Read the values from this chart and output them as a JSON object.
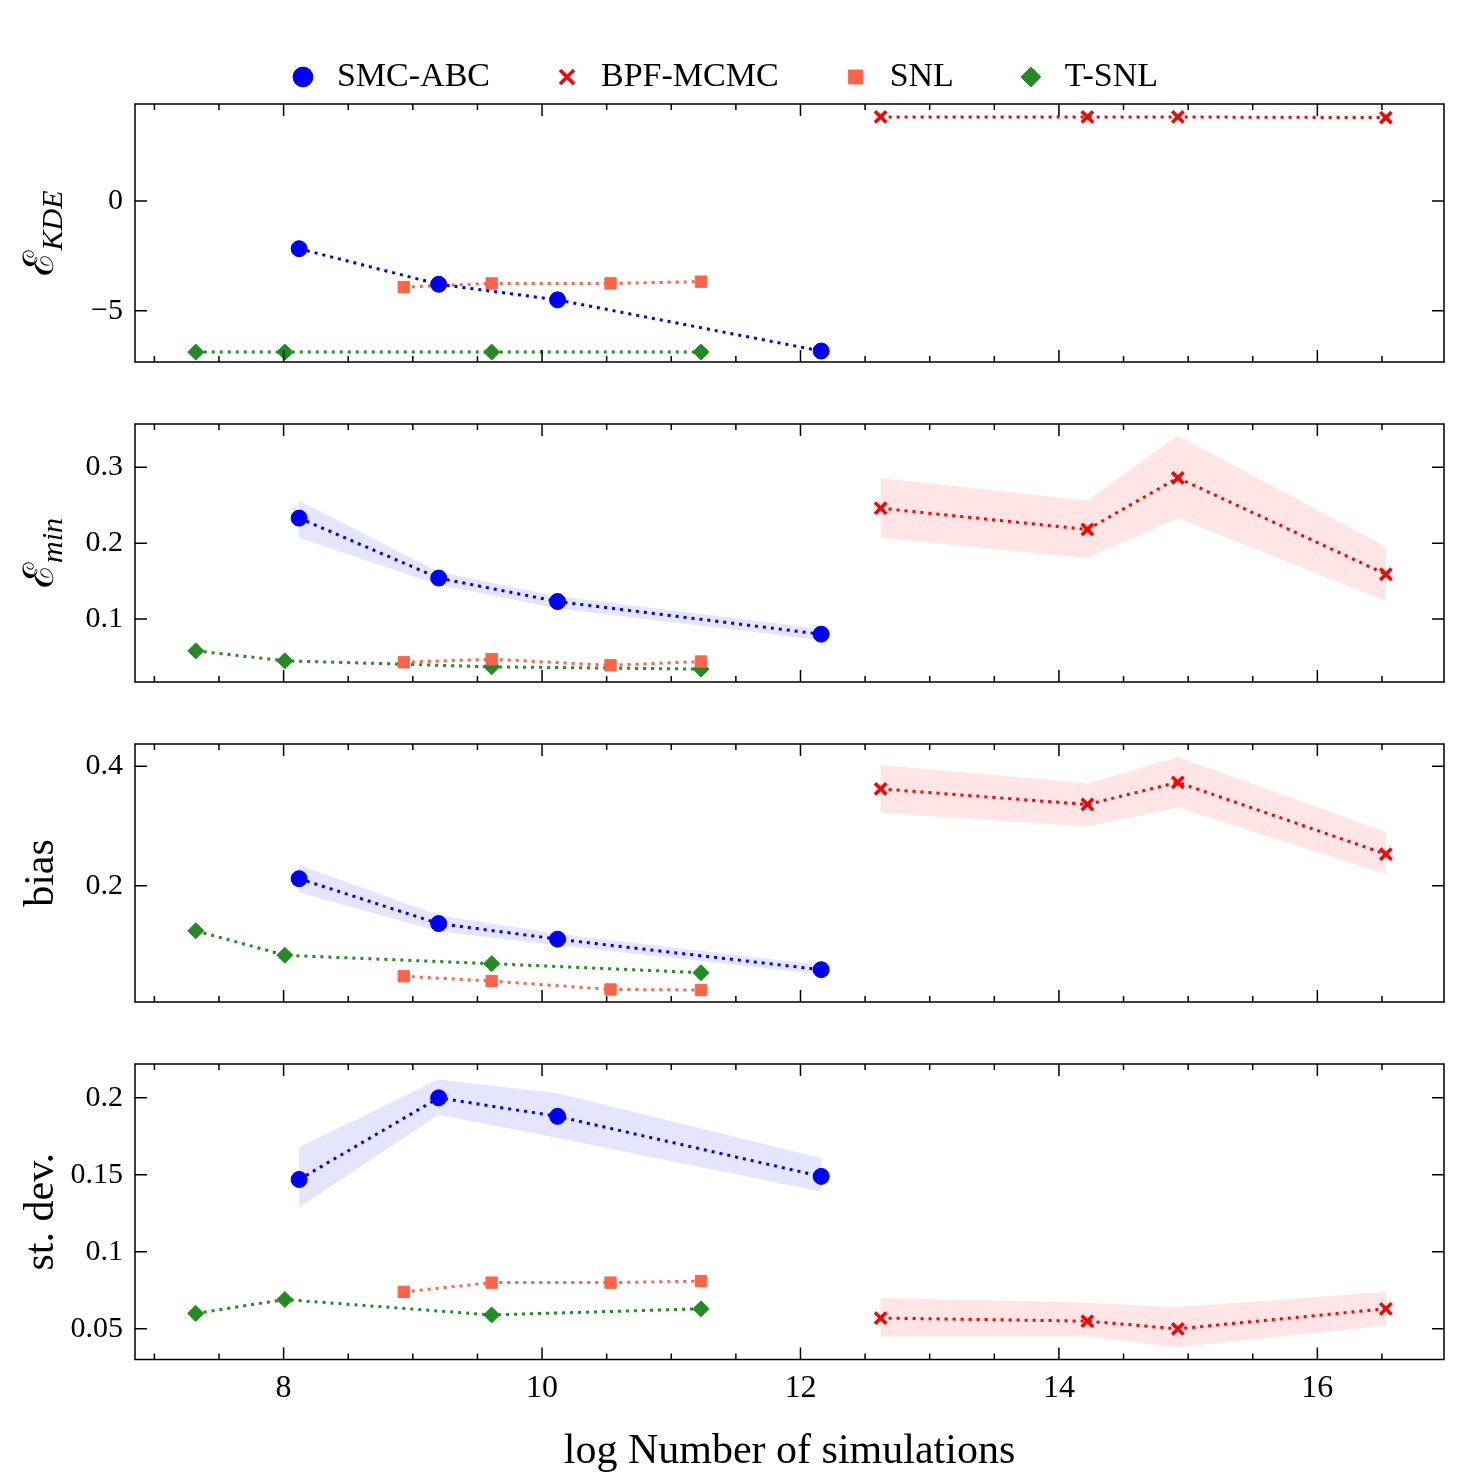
{
  "chart_data": [
    {
      "type": "line",
      "ylabel": "ℰ$_{KDE}$",
      "legend": "top",
      "tick_labels": "y",
      "marker": "circle",
      "line_style": "dotted",
      "xlim": [
        6.85,
        16.98
      ],
      "ylim": [
        -7.33,
        4.42
      ],
      "yticks": [
        -5,
        0
      ],
      "xticks": [
        {
          "value": 7,
          "label": null
        },
        {
          "value": 7.5,
          "label": null
        },
        8,
        {
          "value": 8.5,
          "label": null
        },
        {
          "value": 9,
          "label": null
        },
        {
          "value": 9.5,
          "label": null
        },
        10,
        {
          "value": 10.5,
          "label": null
        },
        {
          "value": 11,
          "label": null
        },
        {
          "value": 11.5,
          "label": null
        },
        12,
        {
          "value": 12.5,
          "label": null
        },
        {
          "value": 13,
          "label": null
        },
        {
          "value": 13.5,
          "label": null
        },
        14,
        {
          "value": 14.5,
          "label": null
        },
        {
          "value": 15,
          "label": null
        },
        {
          "value": 15.5,
          "label": null
        },
        16,
        {
          "value": 16.5,
          "label": null
        }
      ],
      "series": [
        {
          "name": "SMC-ABC",
          "color": "#0000ff",
          "x": [
            8.12,
            9.2,
            10.12,
            12.16
          ],
          "values": [
            -2.17,
            -3.79,
            -4.5,
            -6.83
          ]
        },
        {
          "name": "BPF-MCMC",
          "color": "#ff0000",
          "marker": "cross",
          "x": [
            12.62,
            14.22,
            14.92,
            16.53
          ],
          "values": [
            3.83,
            3.83,
            3.83,
            3.8
          ]
        },
        {
          "name": "SNL",
          "color": "#ff6347",
          "marker": "square",
          "x": [
            8.93,
            9.61,
            10.53,
            11.23
          ],
          "values": [
            -3.92,
            -3.75,
            -3.75,
            -3.67
          ]
        },
        {
          "name": "T-SNL",
          "color": "#228b22",
          "marker": "diamond",
          "x": [
            7.32,
            8.01,
            9.61,
            11.23
          ],
          "values": [
            -6.88,
            -6.88,
            -6.88,
            -6.88
          ]
        }
      ]
    },
    {
      "type": "line",
      "ylabel": "ℰ$_{min}$",
      "tick_labels": "y",
      "marker": "circle",
      "line_style": "dotted",
      "xlim": [
        6.85,
        16.98
      ],
      "ylim": [
        0.017,
        0.357
      ],
      "yticks": [
        0.1,
        0.2,
        0.3
      ],
      "xticks": [
        {
          "value": 7,
          "label": null
        },
        {
          "value": 7.5,
          "label": null
        },
        8,
        {
          "value": 8.5,
          "label": null
        },
        {
          "value": 9,
          "label": null
        },
        {
          "value": 9.5,
          "label": null
        },
        10,
        {
          "value": 10.5,
          "label": null
        },
        {
          "value": 11,
          "label": null
        },
        {
          "value": 11.5,
          "label": null
        },
        12,
        {
          "value": 12.5,
          "label": null
        },
        {
          "value": 13,
          "label": null
        },
        {
          "value": 13.5,
          "label": null
        },
        14,
        {
          "value": 14.5,
          "label": null
        },
        {
          "value": 15,
          "label": null
        },
        {
          "value": 15.5,
          "label": null
        },
        16,
        {
          "value": 16.5,
          "label": null
        }
      ],
      "series": [
        {
          "color": "#0000ff",
          "x": [
            8.12,
            9.2,
            10.12,
            12.16
          ],
          "values": [
            0.233,
            0.154,
            0.123,
            0.08
          ],
          "lower": [
            0.207,
            0.145,
            0.114,
            0.072
          ],
          "upper": [
            0.256,
            0.162,
            0.13,
            0.087
          ]
        },
        {
          "color": "#ff0000",
          "marker": "cross",
          "x": [
            12.62,
            14.22,
            14.92,
            16.53
          ],
          "values": [
            0.246,
            0.218,
            0.286,
            0.159
          ],
          "lower": [
            0.207,
            0.18,
            0.233,
            0.124
          ],
          "upper": [
            0.286,
            0.256,
            0.342,
            0.195
          ]
        },
        {
          "color": "#ff6347",
          "marker": "square",
          "x": [
            8.93,
            9.61,
            10.53,
            11.23
          ],
          "values": [
            0.043,
            0.047,
            0.039,
            0.044
          ]
        },
        {
          "color": "#228b22",
          "marker": "diamond",
          "x": [
            7.32,
            8.01,
            9.61,
            11.23
          ],
          "values": [
            0.058,
            0.045,
            0.037,
            0.034
          ]
        }
      ]
    },
    {
      "type": "line",
      "ylabel": "bias",
      "tick_labels": "y",
      "marker": "circle",
      "line_style": "dotted",
      "xlim": [
        6.85,
        16.98
      ],
      "ylim": [
        0.006,
        0.437
      ],
      "yticks": [
        0.2,
        0.4
      ],
      "xticks": [
        {
          "value": 7,
          "label": null
        },
        {
          "value": 7.5,
          "label": null
        },
        8,
        {
          "value": 8.5,
          "label": null
        },
        {
          "value": 9,
          "label": null
        },
        {
          "value": 9.5,
          "label": null
        },
        10,
        {
          "value": 10.5,
          "label": null
        },
        {
          "value": 11,
          "label": null
        },
        {
          "value": 11.5,
          "label": null
        },
        12,
        {
          "value": 12.5,
          "label": null
        },
        {
          "value": 13,
          "label": null
        },
        {
          "value": 13.5,
          "label": null
        },
        14,
        {
          "value": 14.5,
          "label": null
        },
        {
          "value": 15,
          "label": null
        },
        {
          "value": 15.5,
          "label": null
        },
        16,
        {
          "value": 16.5,
          "label": null
        }
      ],
      "series": [
        {
          "color": "#0000ff",
          "x": [
            8.12,
            9.2,
            10.12,
            12.16
          ],
          "values": [
            0.212,
            0.137,
            0.111,
            0.06
          ],
          "lower": [
            0.189,
            0.124,
            0.101,
            0.052
          ],
          "upper": [
            0.235,
            0.151,
            0.12,
            0.068
          ]
        },
        {
          "color": "#ff0000",
          "marker": "cross",
          "x": [
            12.62,
            14.22,
            14.92,
            16.53
          ],
          "values": [
            0.362,
            0.336,
            0.373,
            0.253
          ],
          "lower": [
            0.322,
            0.299,
            0.331,
            0.22
          ],
          "upper": [
            0.402,
            0.371,
            0.415,
            0.29
          ]
        },
        {
          "color": "#ff6347",
          "marker": "square",
          "x": [
            8.93,
            9.61,
            10.53,
            11.23
          ],
          "values": [
            0.049,
            0.041,
            0.027,
            0.026
          ]
        },
        {
          "color": "#228b22",
          "marker": "diamond",
          "x": [
            7.32,
            8.01,
            9.61,
            11.23
          ],
          "values": [
            0.125,
            0.084,
            0.07,
            0.055
          ]
        }
      ]
    },
    {
      "type": "line",
      "ylabel": "st. dev.",
      "xlabel": "log Number of simulations",
      "marker": "circle",
      "line_style": "dotted",
      "xlim": [
        6.85,
        16.98
      ],
      "ylim": [
        0.03,
        0.222
      ],
      "yticks": [
        0.05,
        0.1,
        0.15,
        0.2
      ],
      "xticks": [
        {
          "value": 7,
          "label": null
        },
        {
          "value": 7.5,
          "label": null
        },
        8,
        {
          "value": 8.5,
          "label": null
        },
        {
          "value": 9,
          "label": null
        },
        {
          "value": 9.5,
          "label": null
        },
        10,
        {
          "value": 10.5,
          "label": null
        },
        {
          "value": 11,
          "label": null
        },
        {
          "value": 11.5,
          "label": null
        },
        12,
        {
          "value": 12.5,
          "label": null
        },
        {
          "value": 13,
          "label": null
        },
        {
          "value": 13.5,
          "label": null
        },
        14,
        {
          "value": 14.5,
          "label": null
        },
        {
          "value": 15,
          "label": null
        },
        {
          "value": 15.5,
          "label": null
        },
        16,
        {
          "value": 16.5,
          "label": null
        }
      ],
      "series": [
        {
          "color": "#0000ff",
          "x": [
            8.12,
            9.2,
            10.12,
            12.16
          ],
          "values": [
            0.147,
            0.2,
            0.188,
            0.149
          ],
          "lower": [
            0.129,
            0.189,
            0.174,
            0.139
          ],
          "upper": [
            0.168,
            0.212,
            0.203,
            0.161
          ]
        },
        {
          "color": "#ff0000",
          "marker": "cross",
          "x": [
            12.62,
            14.22,
            14.92,
            16.53
          ],
          "values": [
            0.057,
            0.055,
            0.05,
            0.063
          ],
          "lower": [
            0.045,
            0.045,
            0.038,
            0.052
          ],
          "upper": [
            0.07,
            0.067,
            0.064,
            0.074
          ]
        },
        {
          "color": "#ff6347",
          "marker": "square",
          "x": [
            8.93,
            9.61,
            10.53,
            11.23
          ],
          "values": [
            0.074,
            0.08,
            0.08,
            0.081
          ]
        },
        {
          "color": "#228b22",
          "marker": "diamond",
          "x": [
            7.32,
            8.01,
            9.61,
            11.23
          ],
          "values": [
            0.06,
            0.069,
            0.059,
            0.063
          ]
        }
      ]
    }
  ]
}
